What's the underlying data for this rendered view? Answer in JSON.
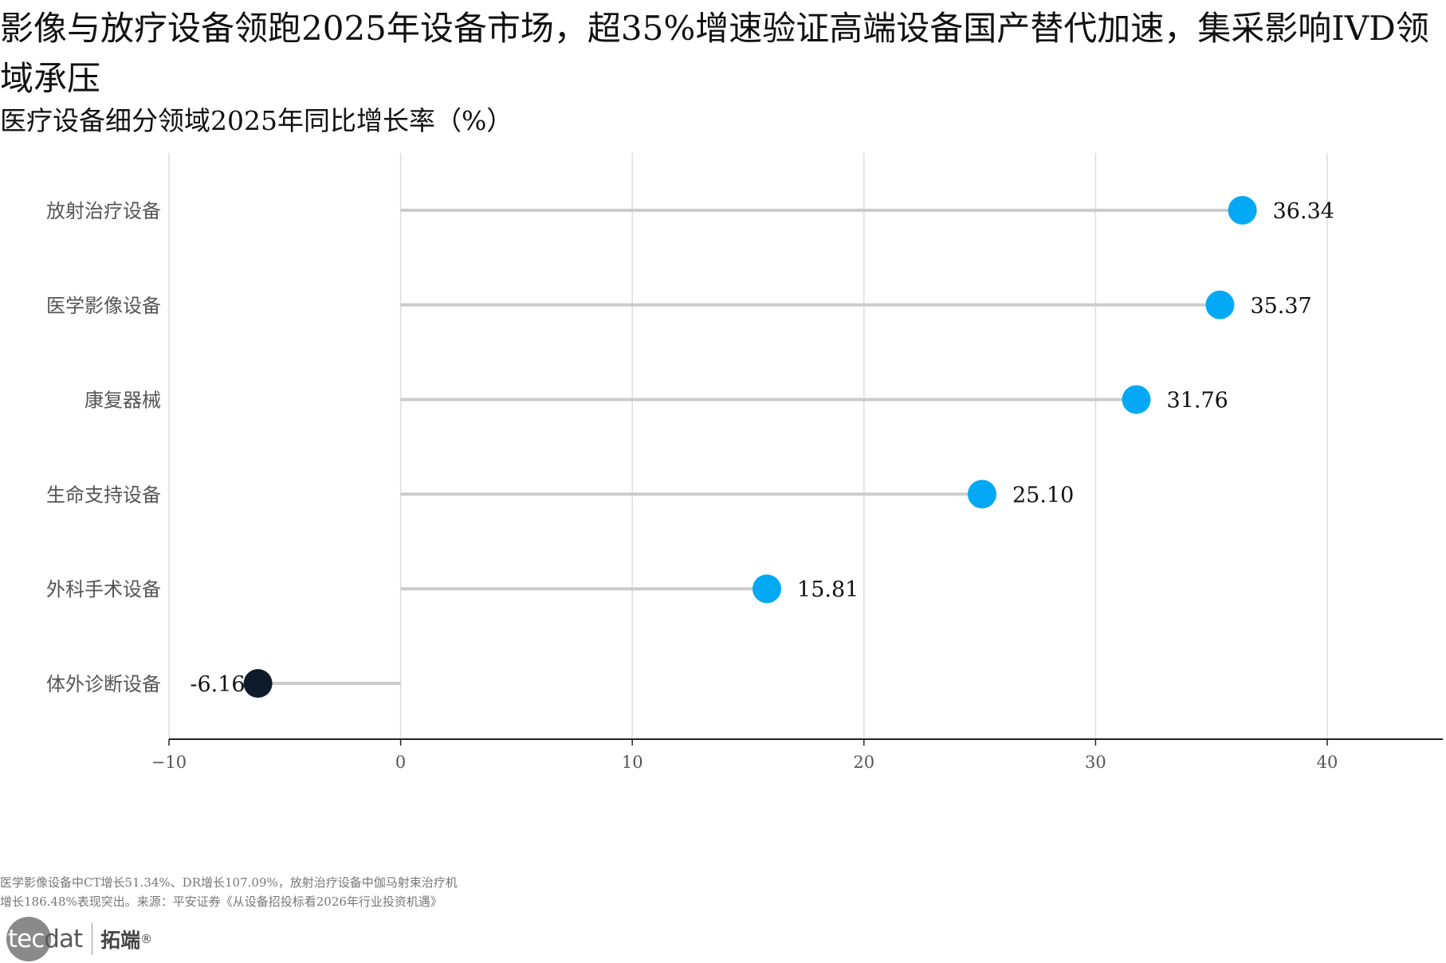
{
  "title": "影像与放疗设备领跑2025年设备市场，超35%增速验证高端设备国产替代加速，集采影响IVD领域承压",
  "subtitle": "医疗设备细分领域2025年同比增长率（%）",
  "chart_data": {
    "type": "lollipop",
    "orientation": "horizontal",
    "categories": [
      "放射治疗设备",
      "医学影像设备",
      "康复器械",
      "生命支持设备",
      "外科手术设备",
      "体外诊断设备"
    ],
    "values": [
      36.34,
      35.37,
      31.76,
      25.1,
      15.81,
      -6.16
    ],
    "value_labels": [
      "36.34",
      "35.37",
      "31.76",
      "25.10",
      "15.81",
      "-6.16"
    ],
    "xlim": [
      -10,
      45
    ],
    "x_ticks": [
      -10,
      0,
      10,
      20,
      30,
      40
    ],
    "x_tick_labels": [
      "−10",
      "0",
      "10",
      "20",
      "30",
      "40"
    ],
    "grid": "vertical",
    "legend": "none",
    "colors": {
      "positive": "#03a9f4",
      "negative": "#0d1b2a",
      "stem": "#cccccc",
      "grid": "#dddddd",
      "axis": "#222222"
    }
  },
  "footnote": {
    "line1": "医学影像设备中CT增长51.34%、DR增长107.09%，放射治疗设备中伽马射束治疗机",
    "line2": "增长186.48%表现突出。来源：平安证券《从设备招投标看2026年行业投资机遇》"
  },
  "logo": {
    "text_white": "tec",
    "text_gray": "dat",
    "cn": "拓端",
    "reg": "®"
  }
}
